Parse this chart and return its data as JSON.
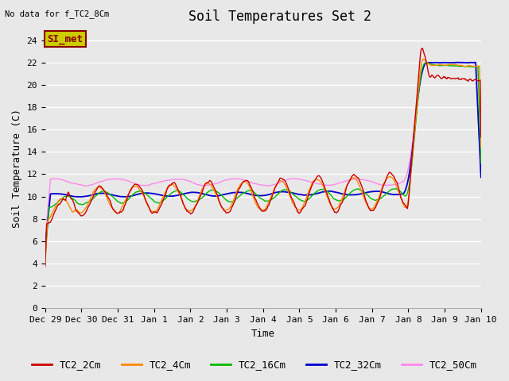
{
  "title": "Soil Temperatures Set 2",
  "subtitle": "No data for f_TC2_8Cm",
  "xlabel": "Time",
  "ylabel": "Soil Temperature (C)",
  "ylim": [
    0,
    25
  ],
  "yticks": [
    0,
    2,
    4,
    6,
    8,
    10,
    12,
    14,
    16,
    18,
    20,
    22,
    24
  ],
  "xtick_labels": [
    "Dec 29",
    "Dec 30",
    "Dec 31",
    "Jan 1",
    "Jan 2",
    "Jan 3",
    "Jan 4",
    "Jan 5",
    "Jan 6",
    "Jan 7",
    "Jan 8",
    "Jan 9",
    "Jan 10"
  ],
  "legend_labels": [
    "TC2_2Cm",
    "TC2_4Cm",
    "TC2_16Cm",
    "TC2_32Cm",
    "TC2_50Cm"
  ],
  "line_colors": [
    "#cc0000",
    "#ff8800",
    "#00bb00",
    "#0000cc",
    "#ff88ee"
  ],
  "background_color": "#e8e8e8",
  "plot_bg_color": "#e8e8e8",
  "grid_color": "#ffffff",
  "watermark_text": "SI_met",
  "watermark_bg": "#cccc00",
  "watermark_fg": "#880000",
  "title_fontsize": 12,
  "axis_label_fontsize": 9,
  "tick_fontsize": 8,
  "legend_fontsize": 9
}
